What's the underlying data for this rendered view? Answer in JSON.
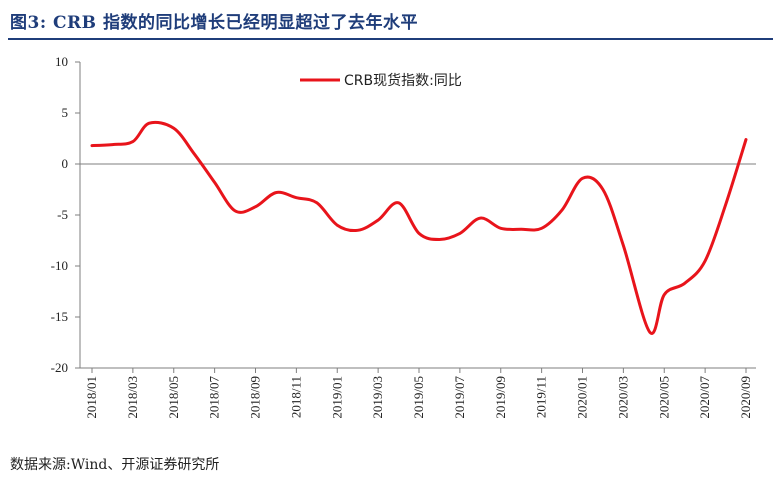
{
  "title": "图3:  CRB 指数的同比增长已经明显超过了去年水平",
  "source": "数据来源:Wind、开源证券研究所",
  "colors": {
    "line": "#e8141b",
    "title": "#1f3d7a",
    "axis": "#7f7f7f"
  },
  "chart_data": {
    "type": "line",
    "title": "",
    "xlabel": "",
    "ylabel": "",
    "ylim": [
      -20,
      10
    ],
    "yticks": [
      10,
      5,
      0,
      -5,
      -10,
      -15,
      -20
    ],
    "xlim": [
      "2018-01",
      "2020-09"
    ],
    "xticks": [
      "2018/01",
      "2018/03",
      "2018/05",
      "2018/07",
      "2018/09",
      "2018/11",
      "2019/01",
      "2019/03",
      "2019/05",
      "2019/07",
      "2019/09",
      "2019/11",
      "2020/01",
      "2020/03",
      "2020/05",
      "2020/07",
      "2020/09"
    ],
    "legend": "top-center",
    "grid": false,
    "series": [
      {
        "name": "CRB现货指数:同比",
        "points": [
          [
            "2018-01-01",
            1.8
          ],
          [
            "2018-02-01",
            1.9
          ],
          [
            "2018-03-01",
            2.2
          ],
          [
            "2018-03-25",
            4.0
          ],
          [
            "2018-05-01",
            3.5
          ],
          [
            "2018-06-01",
            1.0
          ],
          [
            "2018-07-01",
            -1.8
          ],
          [
            "2018-08-01",
            -4.6
          ],
          [
            "2018-09-01",
            -4.2
          ],
          [
            "2018-10-01",
            -2.8
          ],
          [
            "2018-11-01",
            -3.3
          ],
          [
            "2018-12-01",
            -3.8
          ],
          [
            "2019-01-01",
            -6.0
          ],
          [
            "2019-02-01",
            -6.5
          ],
          [
            "2019-03-01",
            -5.5
          ],
          [
            "2019-04-01",
            -3.8
          ],
          [
            "2019-05-01",
            -6.8
          ],
          [
            "2019-06-01",
            -7.4
          ],
          [
            "2019-07-01",
            -6.8
          ],
          [
            "2019-08-01",
            -5.3
          ],
          [
            "2019-09-01",
            -6.3
          ],
          [
            "2019-10-01",
            -6.4
          ],
          [
            "2019-11-01",
            -6.3
          ],
          [
            "2019-12-01",
            -4.5
          ],
          [
            "2020-01-01",
            -1.4
          ],
          [
            "2020-02-01",
            -2.5
          ],
          [
            "2020-03-01",
            -8.0
          ],
          [
            "2020-04-10",
            -16.5
          ],
          [
            "2020-05-01",
            -12.8
          ],
          [
            "2020-06-01",
            -11.7
          ],
          [
            "2020-07-01",
            -9.5
          ],
          [
            "2020-08-01",
            -4.0
          ],
          [
            "2020-09-01",
            2.4
          ]
        ]
      }
    ]
  }
}
